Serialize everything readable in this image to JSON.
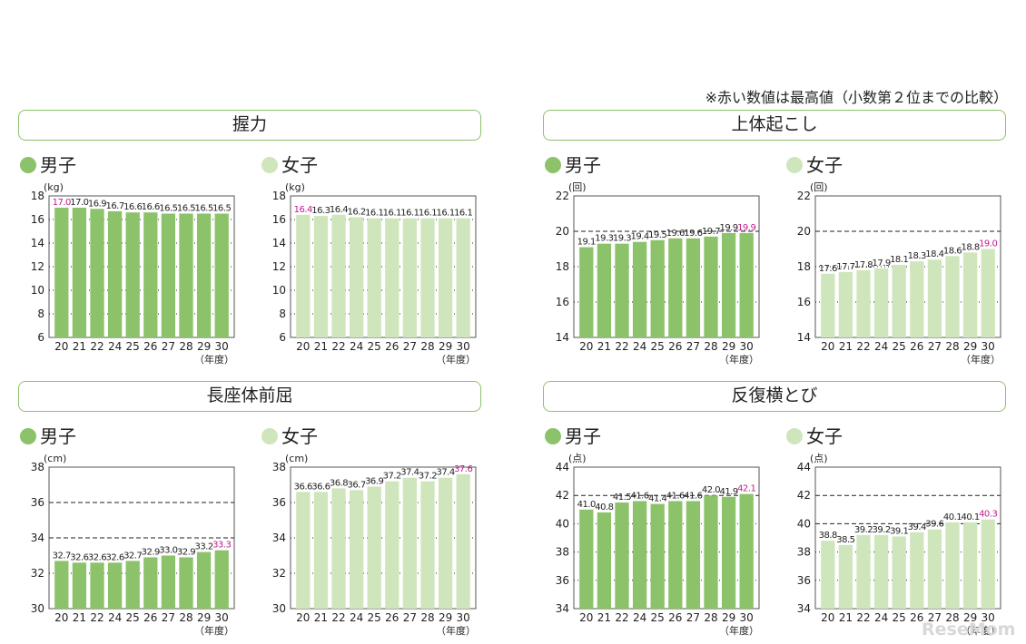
{
  "note": "※赤い数値は最高値（小数第２位までの比較）",
  "categories": [
    "20",
    "21",
    "22",
    "24",
    "25",
    "26",
    "27",
    "28",
    "29",
    "30"
  ],
  "xunit": "（年度）",
  "colors": {
    "boy": "#8cc36a",
    "girl": "#cfe6bd",
    "highlight": "#c4198e",
    "frame": "#8cc36a"
  },
  "sections": [
    {
      "title": "握力",
      "boys_label": "男子",
      "girls_label": "女子"
    },
    {
      "title": "上体起こし",
      "boys_label": "男子",
      "girls_label": "女子"
    },
    {
      "title": "長座体前屈",
      "boys_label": "男子",
      "girls_label": "女子"
    },
    {
      "title": "反復横とび",
      "boys_label": "男子",
      "girls_label": "女子"
    }
  ],
  "chart_data": [
    {
      "type": "bar",
      "section": "握力",
      "series_name": "男子",
      "ylabel": "(kg)",
      "ylim": [
        6,
        18
      ],
      "yticks": [
        6,
        8,
        10,
        12,
        14,
        16,
        18
      ],
      "dashed": [],
      "categories": [
        "20",
        "21",
        "22",
        "24",
        "25",
        "26",
        "27",
        "28",
        "29",
        "30"
      ],
      "values": [
        17.0,
        17.0,
        16.9,
        16.7,
        16.6,
        16.6,
        16.5,
        16.5,
        16.5,
        16.5
      ],
      "labels": [
        "17.0",
        "17.0",
        "16.9",
        "16.7",
        "16.6",
        "16.6",
        "16.5",
        "16.5",
        "16.5",
        "16.5"
      ],
      "highlight": [
        0
      ]
    },
    {
      "type": "bar",
      "section": "握力",
      "series_name": "女子",
      "ylabel": "(kg)",
      "ylim": [
        6,
        18
      ],
      "yticks": [
        6,
        8,
        10,
        12,
        14,
        16,
        18
      ],
      "dashed": [],
      "categories": [
        "20",
        "21",
        "22",
        "24",
        "25",
        "26",
        "27",
        "28",
        "29",
        "30"
      ],
      "values": [
        16.4,
        16.3,
        16.4,
        16.2,
        16.1,
        16.1,
        16.1,
        16.1,
        16.1,
        16.1
      ],
      "labels": [
        "16.4",
        "16.3",
        "16.4",
        "16.2",
        "16.1",
        "16.1",
        "16.1",
        "16.1",
        "16.1",
        "16.1"
      ],
      "highlight": [
        0
      ]
    },
    {
      "type": "bar",
      "section": "上体起こし",
      "series_name": "男子",
      "ylabel": "(回)",
      "ylim": [
        14,
        22
      ],
      "yticks": [
        14,
        16,
        18,
        20,
        22
      ],
      "dashed": [
        20
      ],
      "categories": [
        "20",
        "21",
        "22",
        "24",
        "25",
        "26",
        "27",
        "28",
        "29",
        "30"
      ],
      "values": [
        19.1,
        19.3,
        19.3,
        19.4,
        19.5,
        19.6,
        19.6,
        19.7,
        19.9,
        19.9
      ],
      "labels": [
        "19.1",
        "19.3",
        "19.3",
        "19.4",
        "19.5",
        "19.6",
        "19.6",
        "19.7",
        "19.9",
        "19.9"
      ],
      "highlight": [
        9
      ]
    },
    {
      "type": "bar",
      "section": "上体起こし",
      "series_name": "女子",
      "ylabel": "(回)",
      "ylim": [
        14,
        22
      ],
      "yticks": [
        14,
        16,
        18,
        20,
        22
      ],
      "dashed": [
        20
      ],
      "categories": [
        "20",
        "21",
        "22",
        "24",
        "25",
        "26",
        "27",
        "28",
        "29",
        "30"
      ],
      "values": [
        17.6,
        17.7,
        17.8,
        17.9,
        18.1,
        18.3,
        18.4,
        18.6,
        18.8,
        19.0
      ],
      "labels": [
        "17.6",
        "17.7",
        "17.8",
        "17.9",
        "18.1",
        "18.3",
        "18.4",
        "18.6",
        "18.8",
        "19.0"
      ],
      "highlight": [
        9
      ]
    },
    {
      "type": "bar",
      "section": "長座体前屈",
      "series_name": "男子",
      "ylabel": "(cm)",
      "ylim": [
        30,
        38
      ],
      "yticks": [
        30,
        32,
        34,
        36,
        38
      ],
      "dashed": [
        34,
        36
      ],
      "categories": [
        "20",
        "21",
        "22",
        "24",
        "25",
        "26",
        "27",
        "28",
        "29",
        "30"
      ],
      "values": [
        32.7,
        32.6,
        32.6,
        32.6,
        32.7,
        32.9,
        33.0,
        32.9,
        33.2,
        33.3
      ],
      "labels": [
        "32.7",
        "32.6",
        "32.6",
        "32.6",
        "32.7",
        "32.9",
        "33.0",
        "32.9",
        "33.2",
        "33.3"
      ],
      "highlight": [
        9
      ]
    },
    {
      "type": "bar",
      "section": "長座体前屈",
      "series_name": "女子",
      "ylabel": "(cm)",
      "ylim": [
        30,
        38
      ],
      "yticks": [
        30,
        32,
        34,
        36,
        38
      ],
      "dashed": [],
      "categories": [
        "20",
        "21",
        "22",
        "24",
        "25",
        "26",
        "27",
        "28",
        "29",
        "30"
      ],
      "values": [
        36.6,
        36.6,
        36.8,
        36.7,
        36.9,
        37.2,
        37.4,
        37.2,
        37.4,
        37.6
      ],
      "labels": [
        "36.6",
        "36.6",
        "36.8",
        "36.7",
        "36.9",
        "37.2",
        "37.4",
        "37.2",
        "37.4",
        "37.6"
      ],
      "highlight": [
        9
      ]
    },
    {
      "type": "bar",
      "section": "反復横とび",
      "series_name": "男子",
      "ylabel": "(点)",
      "ylim": [
        34,
        44
      ],
      "yticks": [
        34,
        36,
        38,
        40,
        42,
        44
      ],
      "dashed": [
        42
      ],
      "categories": [
        "20",
        "21",
        "22",
        "24",
        "25",
        "26",
        "27",
        "28",
        "29",
        "30"
      ],
      "values": [
        41.0,
        40.8,
        41.5,
        41.6,
        41.4,
        41.6,
        41.6,
        42.0,
        41.9,
        42.1
      ],
      "labels": [
        "41.0",
        "40.8",
        "41.5",
        "41.6",
        "41.4",
        "41.6",
        "41.6",
        "42.0",
        "41.9",
        "42.1"
      ],
      "highlight": [
        9
      ]
    },
    {
      "type": "bar",
      "section": "反復横とび",
      "series_name": "女子",
      "ylabel": "(点)",
      "ylim": [
        34,
        44
      ],
      "yticks": [
        34,
        36,
        38,
        40,
        42,
        44
      ],
      "dashed": [
        40,
        42
      ],
      "categories": [
        "20",
        "21",
        "22",
        "24",
        "25",
        "26",
        "27",
        "28",
        "29",
        "30"
      ],
      "values": [
        38.8,
        38.5,
        39.2,
        39.2,
        39.1,
        39.4,
        39.6,
        40.1,
        40.1,
        40.3
      ],
      "labels": [
        "38.8",
        "38.5",
        "39.2",
        "39.2",
        "39.1",
        "39.4",
        "39.6",
        "40.1",
        "40.1",
        "40.3"
      ],
      "highlight": [
        9
      ]
    }
  ],
  "watermark": "ReseMom"
}
